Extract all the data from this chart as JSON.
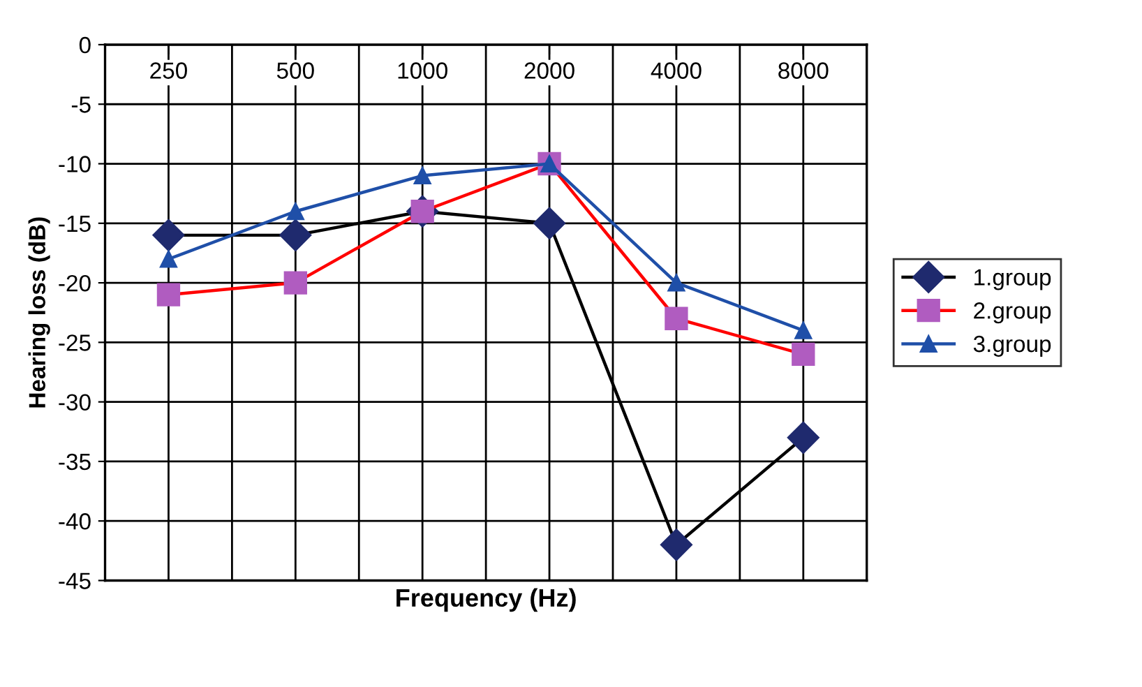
{
  "chart_data": {
    "type": "line",
    "xlabel": "Frequency (Hz)",
    "ylabel": "Hearing loss (dB)",
    "categories": [
      "250",
      "500",
      "1000",
      "2000",
      "4000",
      "8000"
    ],
    "series": [
      {
        "name": "1.group",
        "color": "#000000",
        "marker": "diamond",
        "values": [
          -16,
          -16,
          -14,
          -15,
          -42,
          -33
        ]
      },
      {
        "name": "2.group",
        "color": "#ff0000",
        "marker": "square",
        "values": [
          -21,
          -20,
          -14,
          -10,
          -23,
          -26
        ]
      },
      {
        "name": "3.group",
        "color": "#1f4fa8",
        "marker": "triangle",
        "values": [
          -18,
          -14,
          -11,
          -10,
          -20,
          -24
        ]
      }
    ],
    "ylim": [
      -45,
      0
    ],
    "yticks": [
      -45,
      -40,
      -35,
      -30,
      -25,
      -20,
      -15,
      -10,
      -5,
      0
    ],
    "grid": true,
    "legend": "right",
    "line_style": "solid"
  }
}
